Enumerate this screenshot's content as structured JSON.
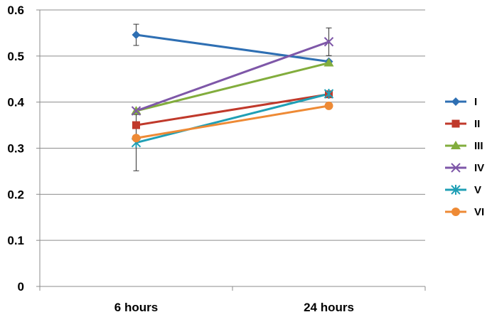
{
  "chart_data": {
    "type": "line",
    "categories": [
      "6 hours",
      "24 hours"
    ],
    "ylim": [
      0,
      0.6
    ],
    "yticks": [
      "0",
      "0.1",
      "0.2",
      "0.3",
      "0.4",
      "0.5",
      "0.6"
    ],
    "grid": true,
    "legend": "right",
    "series": [
      {
        "name": "I",
        "values": [
          0.546,
          0.488
        ],
        "err": [
          0.023,
          0.0
        ],
        "color": "#2e6fb3",
        "marker": "diamond"
      },
      {
        "name": "II",
        "values": [
          0.35,
          0.417
        ],
        "err": [
          0.0,
          0.0
        ],
        "color": "#c0392b",
        "marker": "square"
      },
      {
        "name": "III",
        "values": [
          0.381,
          0.485
        ],
        "err": [
          0.0,
          0.0
        ],
        "color": "#82ad3d",
        "marker": "triangle"
      },
      {
        "name": "IV",
        "values": [
          0.381,
          0.531
        ],
        "err": [
          0.0,
          0.03
        ],
        "color": "#7e57a8",
        "marker": "x"
      },
      {
        "name": "V",
        "values": [
          0.312,
          0.418
        ],
        "err": [
          0.061,
          0.0
        ],
        "color": "#1f9fb5",
        "marker": "star"
      },
      {
        "name": "VI",
        "values": [
          0.322,
          0.392
        ],
        "err": [
          0.0,
          0.0
        ],
        "color": "#ee8a35",
        "marker": "circle"
      }
    ]
  }
}
